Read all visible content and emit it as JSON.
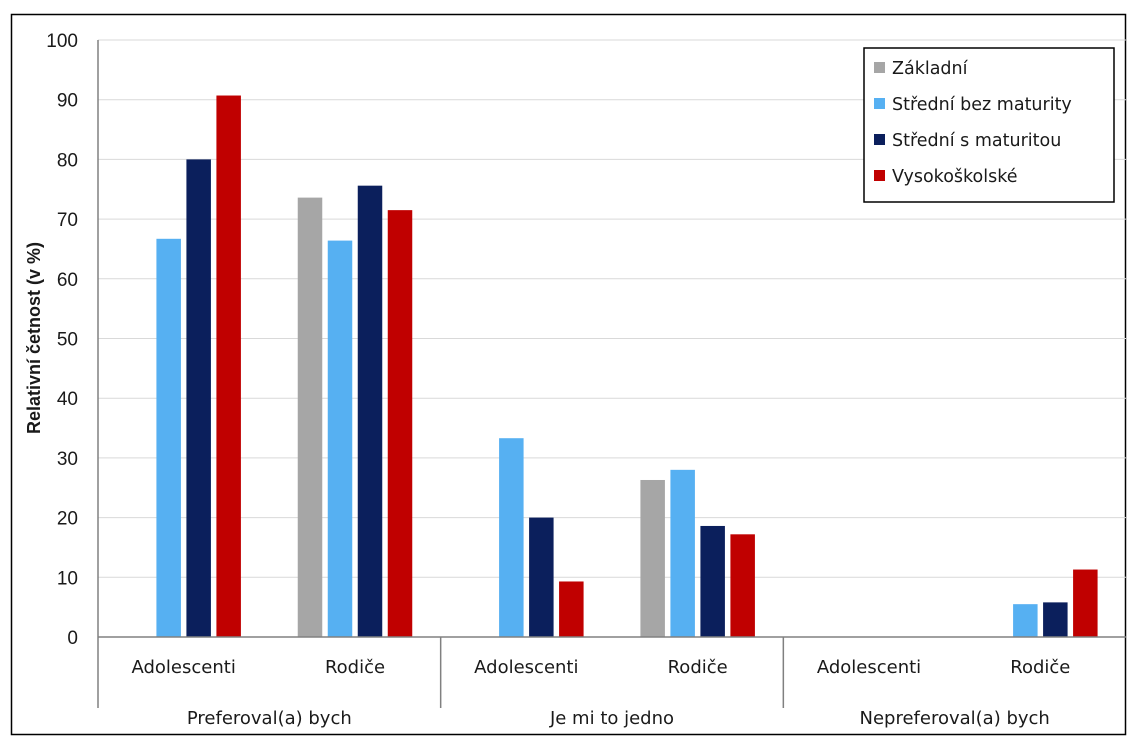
{
  "chart_data": {
    "type": "bar",
    "ylabel": "Relativní četnost (v %)",
    "ylim": [
      0,
      100
    ],
    "yticks": [
      "0",
      "10",
      "20",
      "30",
      "40",
      "50",
      "60",
      "70",
      "80",
      "90",
      "100"
    ],
    "grid": true,
    "legend_position": "top-right",
    "groups": [
      {
        "label": "Preferoval(a) bych",
        "categories": [
          "Adolescenti",
          "Rodiče"
        ]
      },
      {
        "label": "Je mi to jedno",
        "categories": [
          "Adolescenti",
          "Rodiče"
        ]
      },
      {
        "label": "Nepreferoval(a) bych",
        "categories": [
          "Adolescenti",
          "Rodiče"
        ]
      }
    ],
    "categories": [
      "Preferoval(a) bych / Adolescenti",
      "Preferoval(a) bych / Rodiče",
      "Je mi to jedno / Adolescenti",
      "Je mi to jedno / Rodiče",
      "Nepreferoval(a) bych / Adolescenti",
      "Nepreferoval(a) bych / Rodiče"
    ],
    "series": [
      {
        "name": "Základní",
        "color": "#a6a6a6",
        "values": [
          0,
          73.6,
          0,
          26.3,
          0,
          0
        ]
      },
      {
        "name": "Střední bez maturity",
        "color": "#56b0f2",
        "values": [
          66.7,
          66.4,
          33.3,
          28.0,
          0,
          5.5
        ]
      },
      {
        "name": "Střední s maturitou",
        "color": "#0b1f5c",
        "values": [
          80.0,
          75.6,
          20.0,
          18.6,
          0,
          5.8
        ]
      },
      {
        "name": "Vysokoškolské",
        "color": "#c00000",
        "values": [
          90.7,
          71.5,
          9.3,
          17.2,
          0,
          11.3
        ]
      }
    ]
  }
}
